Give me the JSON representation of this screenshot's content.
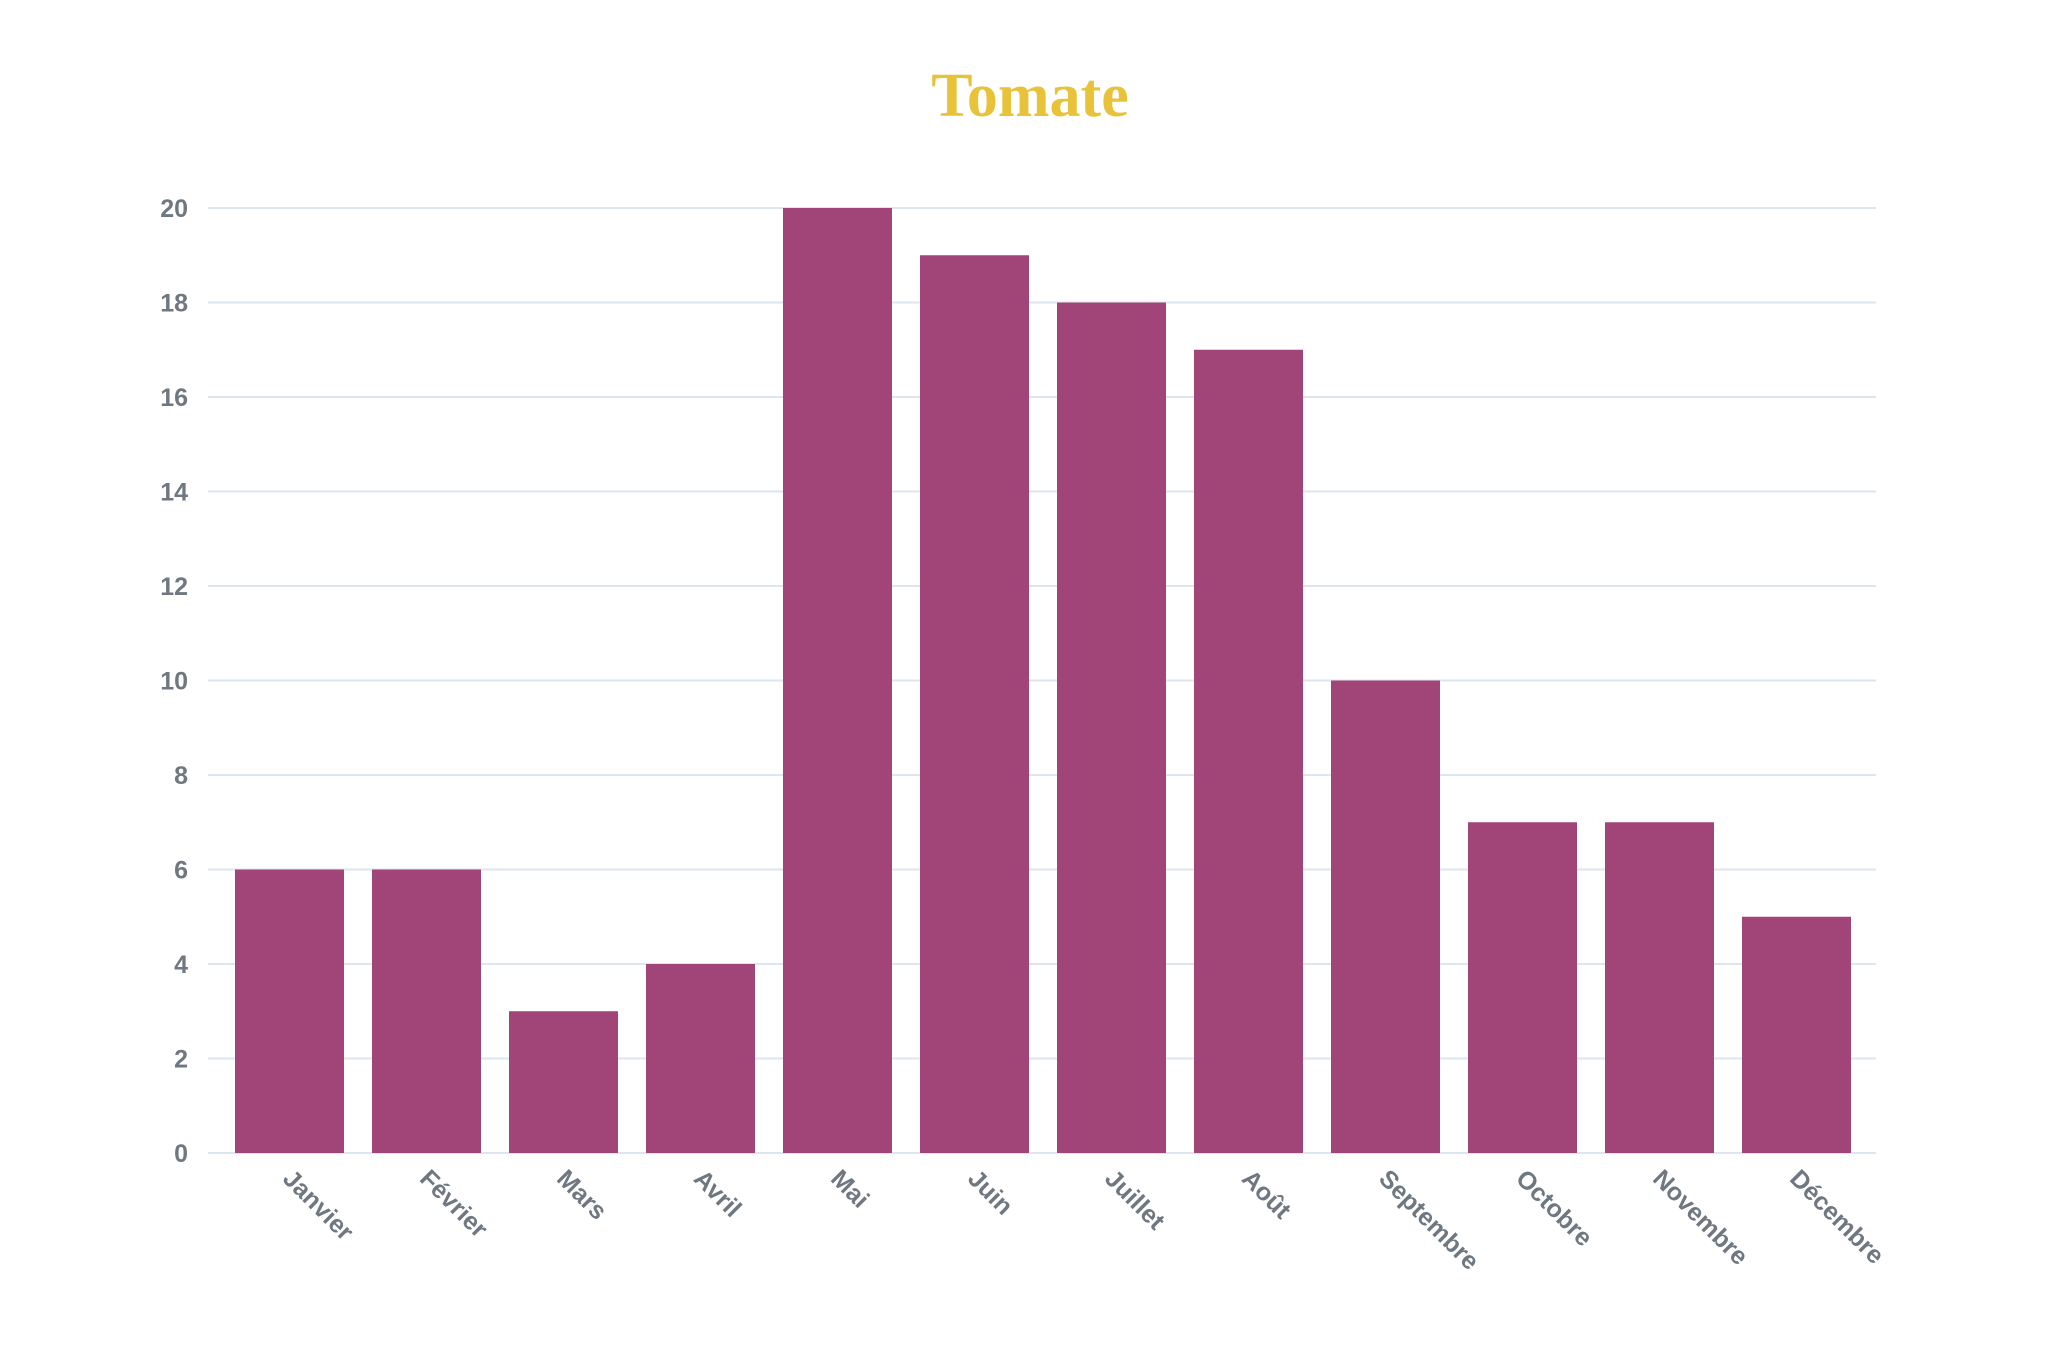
{
  "chart_data": {
    "type": "bar",
    "title": "Tomate",
    "xlabel": "",
    "ylabel": "",
    "categories": [
      "Janvier",
      "Février",
      "Mars",
      "Avril",
      "Mai",
      "Juin",
      "Juillet",
      "Août",
      "Septembre",
      "Octobre",
      "Novembre",
      "Décembre"
    ],
    "values": [
      6,
      6,
      3,
      4,
      20,
      19,
      18,
      17,
      10,
      7,
      7,
      5
    ],
    "ylim": [
      0,
      20
    ],
    "yticks": [
      0,
      2,
      4,
      6,
      8,
      10,
      12,
      14,
      16,
      18,
      20
    ],
    "grid": true,
    "legend": "none"
  },
  "colors": {
    "bar": "#a14478",
    "title": "#e8c33a",
    "grid": "#dde6ee",
    "tick_label": "#6f7780"
  }
}
